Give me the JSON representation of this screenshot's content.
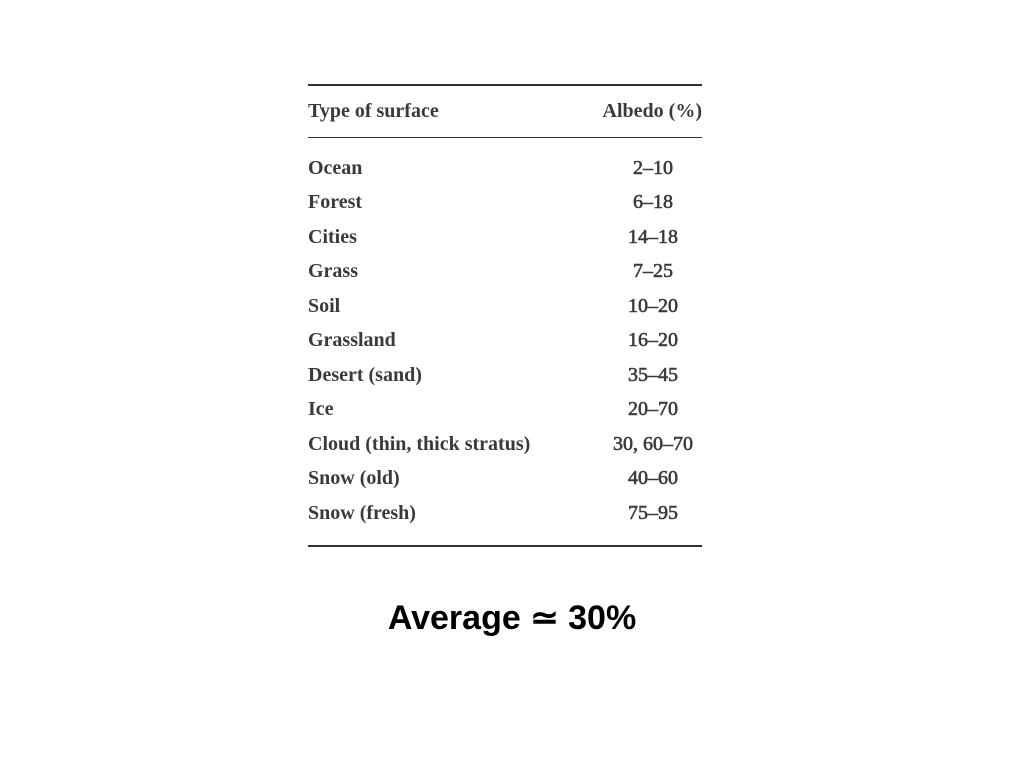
{
  "table": {
    "headers": {
      "type": "Type of surface",
      "albedo": "Albedo (%)"
    },
    "rows": [
      {
        "type": "Ocean",
        "albedo": "2–10"
      },
      {
        "type": "Forest",
        "albedo": "6–18"
      },
      {
        "type": "Cities",
        "albedo": "14–18"
      },
      {
        "type": "Grass",
        "albedo": "7–25"
      },
      {
        "type": "Soil",
        "albedo": "10–20"
      },
      {
        "type": "Grassland",
        "albedo": "16–20"
      },
      {
        "type": "Desert (sand)",
        "albedo": "35–45"
      },
      {
        "type": "Ice",
        "albedo": "20–70"
      },
      {
        "type": "Cloud (thin, thick stratus)",
        "albedo": "30, 60–70"
      },
      {
        "type": "Snow (old)",
        "albedo": "40–60"
      },
      {
        "type": "Snow (fresh)",
        "albedo": "75–95"
      }
    ]
  },
  "summary": {
    "text": "Average ≃ 30%"
  }
}
